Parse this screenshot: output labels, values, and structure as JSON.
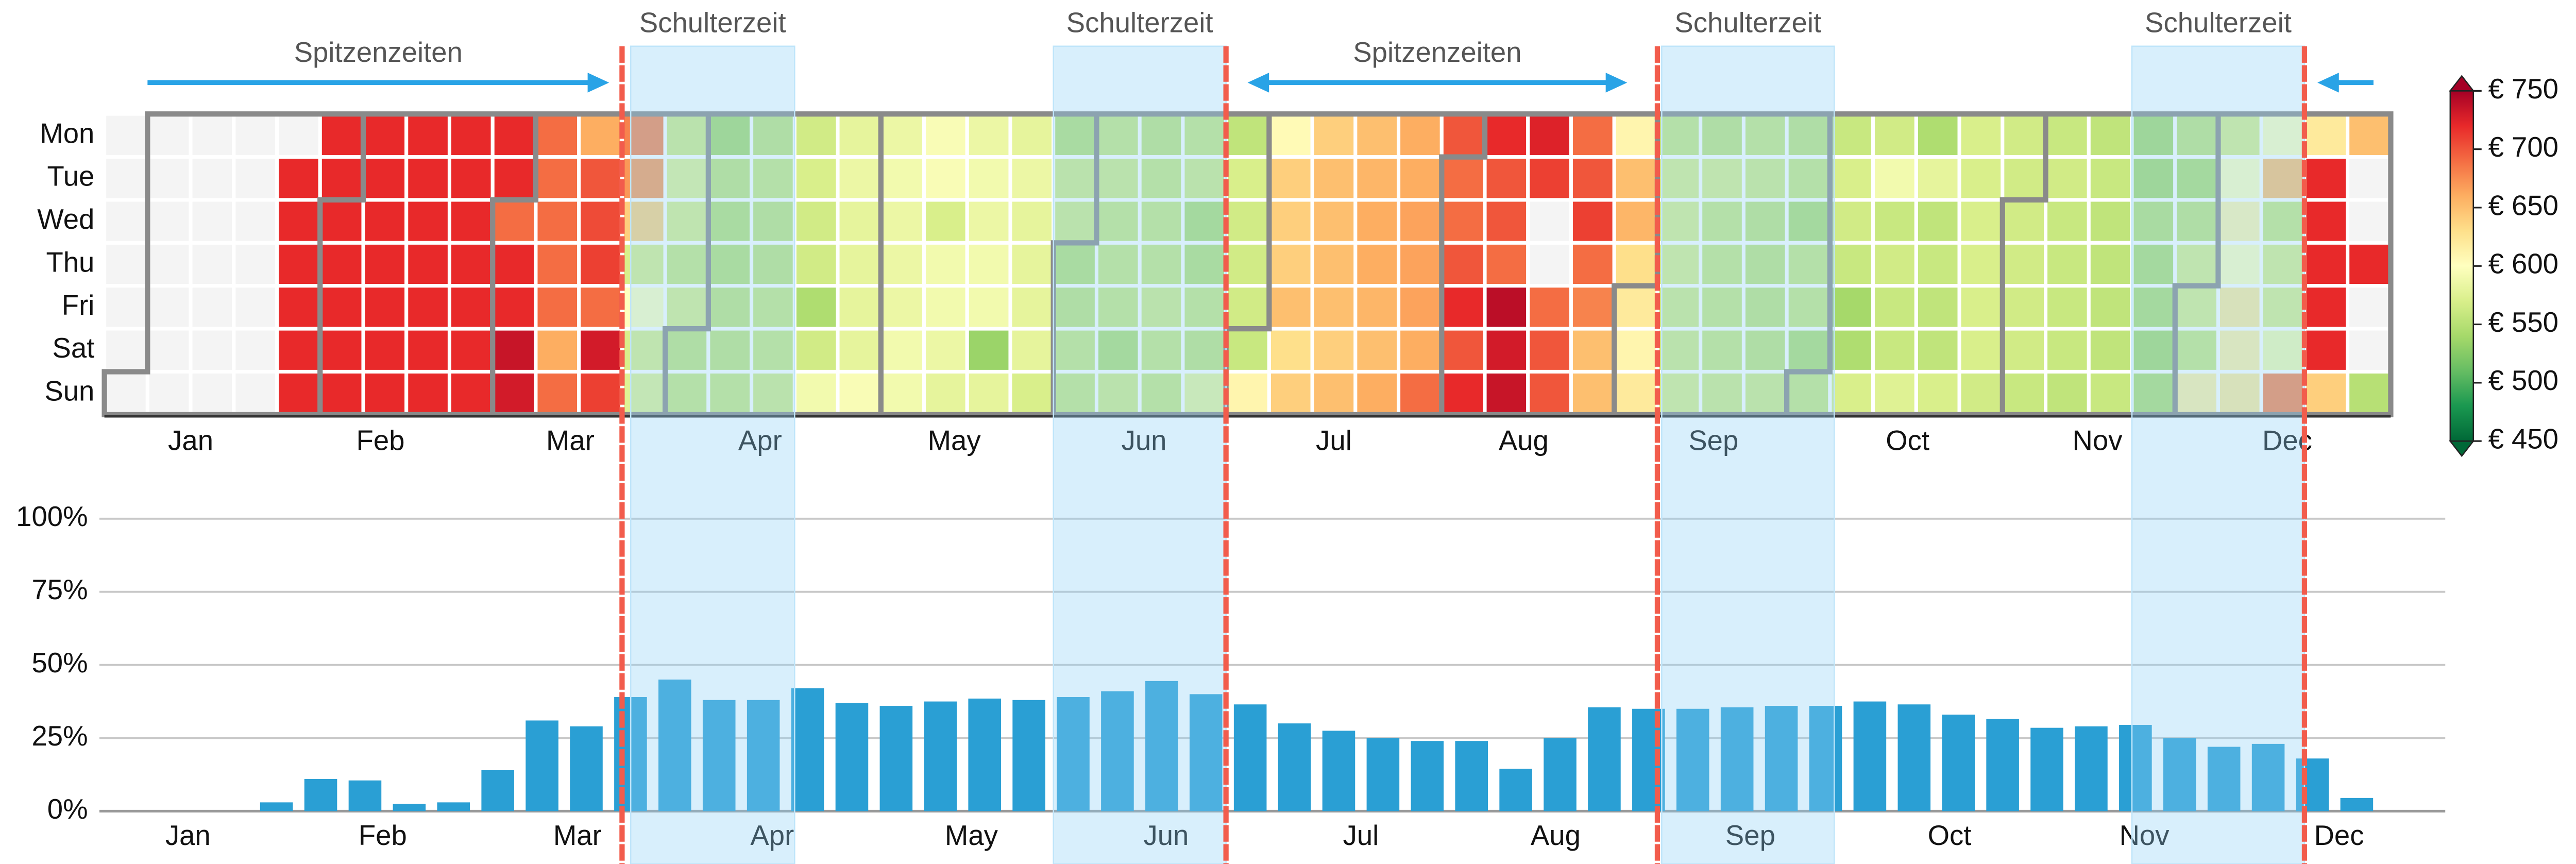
{
  "chart_data": [
    {
      "type": "heatmap",
      "rows": [
        "Mon",
        "Tue",
        "Wed",
        "Thu",
        "Fri",
        "Sat",
        "Sun"
      ],
      "values": [
        [
          null,
          null,
          null,
          null,
          null,
          720,
          720,
          720,
          720,
          720,
          690,
          660,
          680,
          565,
          540,
          555,
          565,
          580,
          585,
          595,
          585,
          580,
          550,
          560,
          555,
          560,
          555,
          605,
          640,
          650,
          660,
          700,
          720,
          725,
          690,
          610,
          560,
          555,
          560,
          555,
          560,
          565,
          545,
          570,
          565,
          560,
          555,
          540,
          555,
          570,
          600,
          620,
          650
        ],
        [
          null,
          null,
          null,
          null,
          720,
          720,
          720,
          720,
          720,
          720,
          690,
          700,
          670,
          575,
          555,
          560,
          570,
          585,
          590,
          595,
          590,
          585,
          565,
          565,
          560,
          565,
          570,
          640,
          650,
          655,
          660,
          690,
          700,
          710,
          700,
          650,
          570,
          570,
          565,
          560,
          570,
          590,
          580,
          570,
          565,
          565,
          560,
          540,
          545,
          600,
          650,
          720,
          null
        ],
        [
          null,
          null,
          null,
          null,
          720,
          720,
          720,
          720,
          720,
          690,
          690,
          705,
          640,
          570,
          550,
          555,
          565,
          580,
          585,
          570,
          585,
          580,
          565,
          560,
          560,
          545,
          565,
          640,
          650,
          660,
          665,
          690,
          700,
          null,
          710,
          655,
          570,
          560,
          555,
          545,
          565,
          560,
          555,
          570,
          565,
          560,
          555,
          550,
          555,
          610,
          560,
          720,
          null
        ],
        [
          null,
          null,
          null,
          null,
          720,
          720,
          720,
          720,
          720,
          720,
          690,
          710,
          570,
          560,
          550,
          555,
          565,
          580,
          585,
          590,
          590,
          580,
          550,
          560,
          560,
          550,
          565,
          640,
          650,
          660,
          665,
          700,
          690,
          null,
          690,
          630,
          570,
          560,
          555,
          560,
          560,
          565,
          560,
          570,
          565,
          560,
          555,
          545,
          570,
          600,
          570,
          720,
          720
        ],
        [
          null,
          null,
          null,
          null,
          720,
          720,
          720,
          720,
          720,
          720,
          690,
          690,
          600,
          570,
          555,
          560,
          545,
          580,
          585,
          590,
          590,
          580,
          555,
          560,
          565,
          560,
          565,
          650,
          650,
          655,
          665,
          720,
          740,
          690,
          680,
          620,
          565,
          560,
          555,
          560,
          540,
          560,
          555,
          570,
          565,
          560,
          555,
          545,
          570,
          620,
          570,
          720,
          null
        ],
        [
          null,
          null,
          null,
          null,
          720,
          720,
          720,
          720,
          720,
          735,
          660,
          730,
          570,
          555,
          555,
          560,
          565,
          580,
          590,
          585,
          535,
          580,
          560,
          545,
          560,
          555,
          560,
          630,
          640,
          650,
          660,
          700,
          730,
          700,
          650,
          610,
          565,
          560,
          555,
          545,
          545,
          560,
          555,
          570,
          565,
          560,
          555,
          540,
          560,
          615,
          590,
          720,
          null
        ],
        [
          null,
          null,
          null,
          null,
          720,
          720,
          720,
          720,
          720,
          730,
          690,
          710,
          575,
          560,
          560,
          565,
          590,
          595,
          590,
          580,
          580,
          570,
          560,
          565,
          560,
          580,
          610,
          640,
          650,
          660,
          690,
          720,
          735,
          700,
          650,
          620,
          570,
          565,
          565,
          560,
          570,
          575,
          570,
          565,
          560,
          555,
          560,
          545,
          615,
          620,
          680,
          640,
          550
        ]
      ],
      "xlim": [
        0,
        53
      ],
      "xticks": [
        {
          "value": 2.0,
          "label": "Jan"
        },
        {
          "value": 6.4,
          "label": "Feb"
        },
        {
          "value": 10.8,
          "label": "Mar"
        },
        {
          "value": 15.2,
          "label": "Apr"
        },
        {
          "value": 19.7,
          "label": "May"
        },
        {
          "value": 24.1,
          "label": "Jun"
        },
        {
          "value": 28.5,
          "label": "Jul"
        },
        {
          "value": 32.9,
          "label": "Aug"
        },
        {
          "value": 37.3,
          "label": "Sep"
        },
        {
          "value": 41.8,
          "label": "Oct"
        },
        {
          "value": 46.2,
          "label": "Nov"
        },
        {
          "value": 50.6,
          "label": "Dec"
        }
      ],
      "zlim": [
        450,
        750
      ],
      "zticks": [
        {
          "value": 450,
          "label": "€ 450"
        },
        {
          "value": 500,
          "label": "€ 500"
        },
        {
          "value": 550,
          "label": "€ 550"
        },
        {
          "value": 600,
          "label": "€ 600"
        },
        {
          "value": 650,
          "label": "€ 650"
        },
        {
          "value": 700,
          "label": "€ 700"
        },
        {
          "value": 750,
          "label": "€ 750"
        }
      ],
      "colorscale": [
        "#006837",
        "#1a9850",
        "#66bd63",
        "#a6d96a",
        "#d9ef8b",
        "#ffffbf",
        "#fee08b",
        "#fdae61",
        "#f46d43",
        "#e8292a",
        "#a50026"
      ],
      "null_color": "#f4f4f4",
      "colorbar_extend": "both",
      "annotations": {
        "shoulder_periods": [
          {
            "label": "Schulterzeit",
            "start": 12.2,
            "end": 16
          },
          {
            "label": "Schulterzeit",
            "start": 22,
            "end": 26
          },
          {
            "label": "Schulterzeit",
            "start": 36.1,
            "end": 40.1
          },
          {
            "label": "Schulterzeit",
            "start": 47,
            "end": 51
          }
        ],
        "boundaries": [
          12,
          26,
          36,
          51
        ],
        "peak_arrows": [
          {
            "label": "Spitzenzeiten",
            "from": 1,
            "to": 11.7,
            "heads": "end"
          },
          {
            "label": "Spitzenzeiten",
            "from": 26.5,
            "to": 35.3,
            "heads": "both"
          },
          {
            "from": 52.6,
            "to": 51.3,
            "heads": "end"
          }
        ]
      }
    },
    {
      "type": "bar",
      "x": [
        0,
        1,
        2,
        3,
        4,
        5,
        6,
        7,
        8,
        9,
        10,
        11,
        12,
        13,
        14,
        15,
        16,
        17,
        18,
        19,
        20,
        21,
        22,
        23,
        24,
        25,
        26,
        27,
        28,
        29,
        30,
        31,
        32,
        33,
        34,
        35,
        36,
        37,
        38,
        39,
        40,
        41,
        42,
        43,
        44,
        45,
        46,
        47,
        48,
        49,
        50,
        51,
        52
      ],
      "values": [
        0,
        0,
        0,
        0,
        3,
        11,
        10.5,
        2.5,
        3,
        14,
        31,
        29,
        39,
        45,
        38,
        38,
        42,
        37,
        36,
        37.5,
        38.5,
        38,
        39,
        41,
        44.5,
        40,
        36.5,
        30,
        27.5,
        25,
        24,
        24,
        14.5,
        25,
        35.5,
        35,
        35,
        35.5,
        36,
        36,
        37.5,
        36.5,
        33,
        31.5,
        28.5,
        29,
        29.5,
        25,
        22,
        23,
        18,
        4.5,
        0
      ],
      "color": "#2a9fd4",
      "xlim": [
        0,
        53
      ],
      "xticks": [
        {
          "value": 2.0,
          "label": "Jan"
        },
        {
          "value": 6.4,
          "label": "Feb"
        },
        {
          "value": 10.8,
          "label": "Mar"
        },
        {
          "value": 15.2,
          "label": "Apr"
        },
        {
          "value": 19.7,
          "label": "May"
        },
        {
          "value": 24.1,
          "label": "Jun"
        },
        {
          "value": 28.5,
          "label": "Jul"
        },
        {
          "value": 32.9,
          "label": "Aug"
        },
        {
          "value": 37.3,
          "label": "Sep"
        },
        {
          "value": 41.8,
          "label": "Oct"
        },
        {
          "value": 46.2,
          "label": "Nov"
        },
        {
          "value": 50.6,
          "label": "Dec"
        }
      ],
      "ylim": [
        0,
        100
      ],
      "yticks": [
        {
          "value": 0,
          "label": "0%"
        },
        {
          "value": 25,
          "label": "25%"
        },
        {
          "value": 50,
          "label": "50%"
        },
        {
          "value": 75,
          "label": "75%"
        },
        {
          "value": 100,
          "label": "100%"
        }
      ],
      "grid": true
    }
  ]
}
